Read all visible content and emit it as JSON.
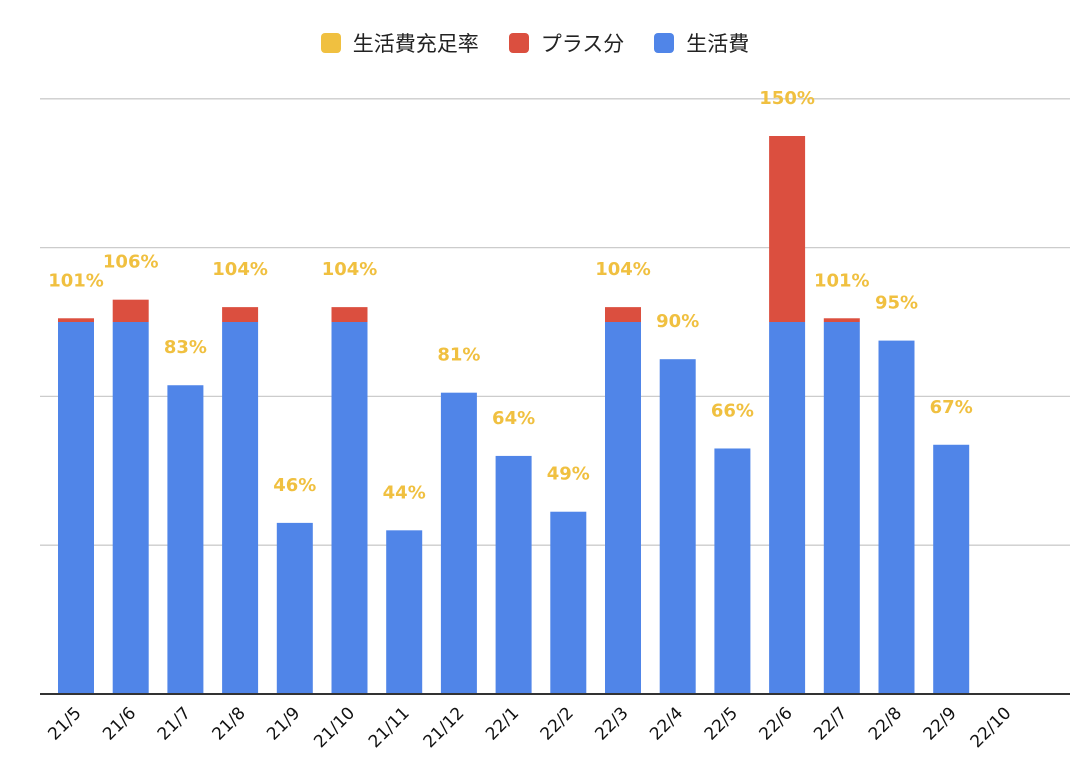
{
  "chart_data": {
    "type": "bar",
    "stacked": true,
    "categories": [
      "21/5",
      "21/6",
      "21/7",
      "21/8",
      "21/9",
      "21/10",
      "21/11",
      "21/12",
      "22/1",
      "22/2",
      "22/3",
      "22/4",
      "22/5",
      "22/6",
      "22/7",
      "22/8",
      "22/9",
      "22/10"
    ],
    "series": [
      {
        "name": "生活費",
        "color": "#5085e8",
        "values": [
          100,
          100,
          83,
          100,
          46,
          100,
          44,
          81,
          64,
          49,
          100,
          90,
          66,
          100,
          100,
          95,
          67,
          0
        ]
      },
      {
        "name": "プラス分",
        "color": "#db4f3f",
        "values": [
          1,
          6,
          0,
          4,
          0,
          4,
          0,
          0,
          0,
          0,
          4,
          0,
          0,
          50,
          1,
          0,
          0,
          0
        ]
      }
    ],
    "rate_series": {
      "name": "生活費充足率",
      "color": "#f0c040",
      "labels": [
        "101%",
        "106%",
        "83%",
        "104%",
        "46%",
        "104%",
        "44%",
        "81%",
        "64%",
        "49%",
        "104%",
        "90%",
        "66%",
        "150%",
        "101%",
        "95%",
        "67%",
        ""
      ]
    },
    "legend": [
      {
        "name": "生活費充足率",
        "color": "#f0c040"
      },
      {
        "name": "プラス分",
        "color": "#db4f3f"
      },
      {
        "name": "生活費",
        "color": "#5085e8"
      }
    ],
    "legend_position": "top",
    "ylim": [
      0,
      160
    ],
    "grid": true,
    "yticks_shown": false
  }
}
